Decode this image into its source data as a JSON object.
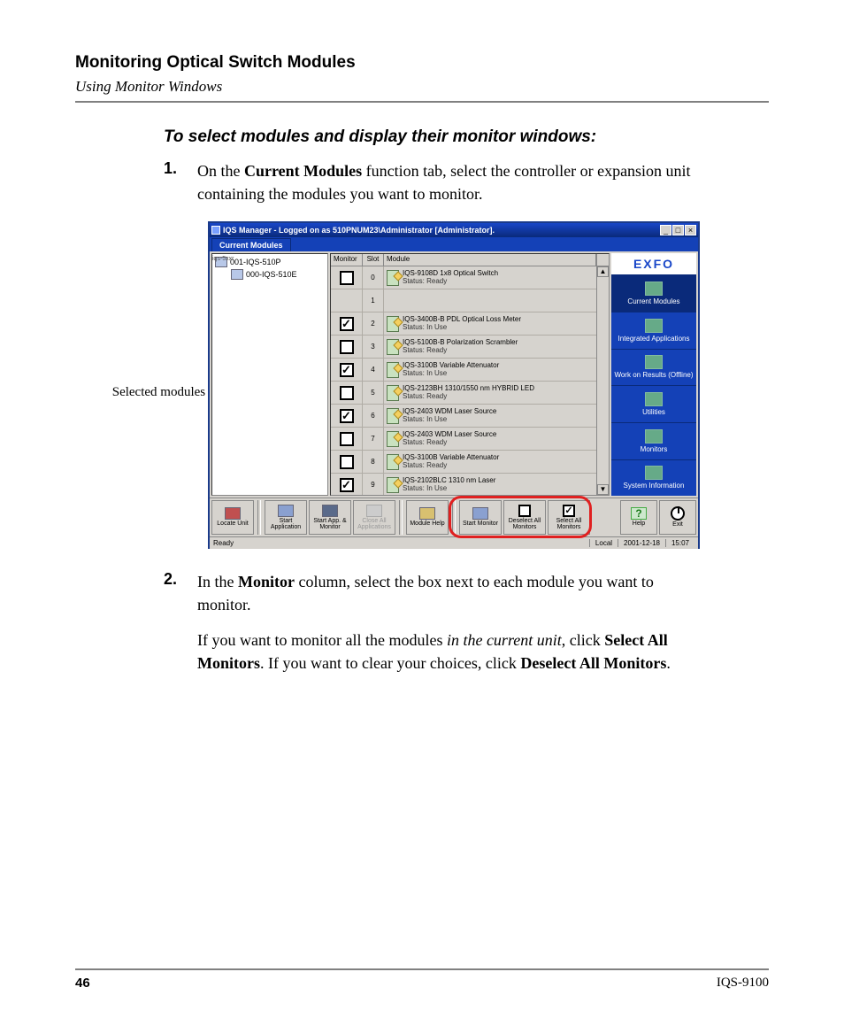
{
  "header": {
    "title": "Monitoring Optical Switch Modules",
    "subtitle": "Using Monitor Windows"
  },
  "section_heading": "To select modules and display their monitor windows:",
  "steps": {
    "s1": {
      "num": "1.",
      "pre": "On the ",
      "bold": "Current Modules",
      "post": " function tab, select the controller or expansion unit containing the modules you want to monitor."
    },
    "s2": {
      "num": "2.",
      "pre": "In the ",
      "bold": "Monitor",
      "post": " column, select the box next to each module you want to monitor."
    },
    "s2b": {
      "p1a": "If you want to monitor all the modules ",
      "p1i": "in the current unit",
      "p1b": ", click ",
      "p1bold": "Select All Monitors",
      "p1c": ". If you want to clear your choices, click ",
      "p1bold2": "Deselect All Monitors",
      "p1d": "."
    }
  },
  "callout": "Selected modules (checked)",
  "window": {
    "title": "IQS Manager - Logged on as 510PNUM23\\Administrator [Administrator].",
    "tab": "Current Modules",
    "tree": {
      "root": "001-IQS-510P",
      "root_side": "iqs-5xxr",
      "child": "000-IQS-510E",
      "child_side": "iqs-5xxE"
    },
    "grid_headers": {
      "monitor": "Monitor",
      "slot": "Slot",
      "module": "Module"
    },
    "rows": [
      {
        "checked": false,
        "slot": "0",
        "name": "IQS-9108D 1x8 Optical Switch",
        "status": "Status:   Ready"
      },
      {
        "empty": true,
        "slot": "1"
      },
      {
        "checked": true,
        "slot": "2",
        "name": "IQS-3400B-B PDL Optical Loss Meter",
        "status": "Status:   In Use"
      },
      {
        "checked": false,
        "slot": "3",
        "name": "IQS-5100B-B Polarization Scrambler",
        "status": "Status:   Ready"
      },
      {
        "checked": true,
        "slot": "4",
        "name": "IQS-3100B Variable Attenuator",
        "status": "Status:   In Use"
      },
      {
        "checked": false,
        "slot": "5",
        "name": "IQS-2123BH 1310/1550 nm HYBRID LED",
        "status": "Status:   Ready"
      },
      {
        "checked": true,
        "slot": "6",
        "name": "IQS-2403 WDM Laser Source",
        "status": "Status:   In Use"
      },
      {
        "checked": false,
        "slot": "7",
        "name": "IQS-2403 WDM Laser Source",
        "status": "Status:   Ready"
      },
      {
        "checked": false,
        "slot": "8",
        "name": "IQS-3100B Variable Attenuator",
        "status": "Status:   Ready"
      },
      {
        "checked": true,
        "slot": "9",
        "name": "IQS-2102BLC 1310 nm Laser",
        "status": "Status:   In Use"
      }
    ],
    "brand": "EXFO",
    "nav": [
      {
        "label": "Current Modules",
        "selected": true
      },
      {
        "label": "Integrated Applications"
      },
      {
        "label": "Work on Results (Offline)"
      },
      {
        "label": "Utilities"
      },
      {
        "label": "Monitors"
      },
      {
        "label": "System Information"
      }
    ],
    "toolbar": {
      "locate": "Locate Unit",
      "start_app": "Start Application",
      "start_app_mon": "Start App. & Monitor",
      "close_all": "Close All Applications",
      "module_help": "Module Help",
      "start_mon": "Start Monitor",
      "deselect": "Deselect All Monitors",
      "select": "Select All Monitors",
      "help": "Help",
      "exit": "Exit"
    },
    "status": {
      "ready": "Ready",
      "local": "Local",
      "date": "2001-12-18",
      "time": "15:07"
    }
  },
  "footer": {
    "page": "46",
    "doc": "IQS-9100"
  },
  "colors": {
    "win_border": "#1a3a8a",
    "titlebar_top": "#1846c8",
    "titlebar_bot": "#0a2a7a",
    "nav_bg": "#1441b7",
    "panel_bg": "#d6d3ce",
    "highlight_ring": "#e02020",
    "rule": "#808080",
    "text": "#000000",
    "page_bg": "#ffffff"
  }
}
